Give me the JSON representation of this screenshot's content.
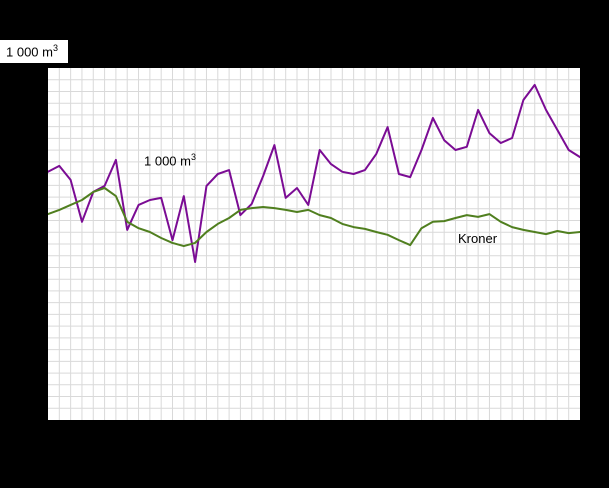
{
  "page": {
    "background": "#000000",
    "plot_background": "#ffffff",
    "grid_color": "#d9d9d9"
  },
  "corner_label": {
    "text": "1 000 m",
    "sup": "3"
  },
  "chart_data": {
    "type": "line",
    "title": "",
    "xlabel": "",
    "ylabel": "",
    "x_tick_labels_visible": false,
    "y_tick_labels_visible": false,
    "ylim": [
      0,
      100
    ],
    "grid": {
      "visible": true,
      "v_lines": 46,
      "h_lines": 29
    },
    "legend_position": "inline-annotations",
    "series": [
      {
        "name": "1 000 m3",
        "color": "#7b0c94",
        "values": [
          70.5,
          72.2,
          68.2,
          56.3,
          64.8,
          66.5,
          73.9,
          54.0,
          61.1,
          62.5,
          63.1,
          51.1,
          63.6,
          44.9,
          66.5,
          69.9,
          71.0,
          58.2,
          61.4,
          69.3,
          78.1,
          63.1,
          65.9,
          61.1,
          76.7,
          72.7,
          70.5,
          69.9,
          71.0,
          75.6,
          83.2,
          69.9,
          69.0,
          76.7,
          85.8,
          79.5,
          76.7,
          77.6,
          88.1,
          81.5,
          78.7,
          80.1,
          90.9,
          95.2,
          88.1,
          82.4,
          76.7,
          74.7
        ]
      },
      {
        "name": "Kroner",
        "color": "#507f1f",
        "values": [
          58.5,
          59.7,
          61.1,
          62.5,
          64.8,
          65.9,
          63.6,
          56.3,
          54.5,
          53.4,
          51.7,
          50.3,
          49.4,
          50.3,
          53.4,
          55.7,
          57.4,
          59.7,
          60.2,
          60.5,
          60.2,
          59.7,
          59.1,
          59.7,
          58.2,
          57.4,
          55.7,
          54.8,
          54.3,
          53.4,
          52.6,
          51.1,
          49.7,
          54.5,
          56.3,
          56.5,
          57.4,
          58.2,
          57.7,
          58.5,
          56.3,
          54.8,
          54.0,
          53.4,
          52.8,
          53.7,
          53.1,
          53.4
        ]
      }
    ],
    "annotations": [
      {
        "text": "1 000 m",
        "sup": "3",
        "series": "1 000 m3"
      },
      {
        "text": "Kroner",
        "sup": "",
        "series": "Kroner"
      }
    ],
    "note": "values are percent of plot height, estimated from gridlines; axis tick labels not visible in screenshot"
  }
}
